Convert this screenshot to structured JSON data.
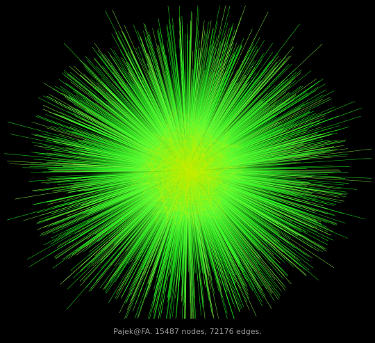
{
  "graph": {
    "name": "Pajek@FA",
    "nodes": 15487,
    "edges": 72176,
    "caption": "Pajek@FA. 15487 nodes, 72176 edges."
  },
  "colors": {
    "background": "#000000",
    "edge_outer": "#22ff22",
    "edge_inner": "#88ff44",
    "core": "#ccee00",
    "caption": "#9a9a9a"
  }
}
